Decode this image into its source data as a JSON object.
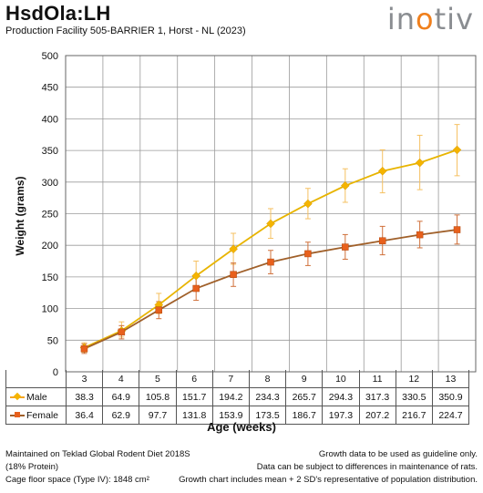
{
  "header": {
    "title": "HsdOla:LH",
    "subtitle": "Production Facility 505-BARRIER 1, Horst - NL (2023)",
    "logo_text": "inotiv"
  },
  "chart_data": {
    "type": "line",
    "title": "HsdOla:LH",
    "xlabel": "Age (weeks)",
    "ylabel": "Weight (grams)",
    "x": [
      3,
      4,
      5,
      6,
      7,
      8,
      9,
      10,
      11,
      12,
      13
    ],
    "ylim": [
      0,
      500
    ],
    "yticks": [
      0,
      50,
      100,
      150,
      200,
      250,
      300,
      350,
      400,
      450,
      500
    ],
    "grid": true,
    "series": [
      {
        "name": "Male",
        "color": "#f5a623",
        "marker": "diamond",
        "values": [
          38.3,
          64.9,
          105.8,
          151.7,
          194.2,
          234.3,
          265.7,
          294.3,
          317.3,
          330.5,
          350.9
        ],
        "error_low": [
          31,
          55,
          92,
          131,
          170,
          211,
          242,
          268,
          283,
          288,
          310
        ],
        "error_high": [
          46,
          79,
          124,
          175,
          219,
          258,
          290,
          321,
          351,
          374,
          391
        ]
      },
      {
        "name": "Female",
        "color": "#e8601c",
        "marker": "square",
        "values": [
          36.4,
          62.9,
          97.7,
          131.8,
          153.9,
          173.5,
          186.7,
          197.3,
          207.2,
          216.7,
          224.7
        ],
        "error_low": [
          29,
          52,
          84,
          113,
          135,
          155,
          168,
          178,
          185,
          196,
          202
        ],
        "error_high": [
          44,
          73,
          111,
          150,
          172,
          192,
          205,
          217,
          230,
          238,
          248
        ]
      }
    ]
  },
  "footer": {
    "left": [
      "Maintained on Teklad Global Rodent Diet 2018S",
      "(18% Protein)",
      "Cage floor space (Type IV): 1848 cm²"
    ],
    "right": [
      "Growth data to be used as guideline only.",
      "Data can be subject to differences in maintenance of rats.",
      "Growth chart includes mean + 2 SD's representative of population distribution."
    ]
  }
}
